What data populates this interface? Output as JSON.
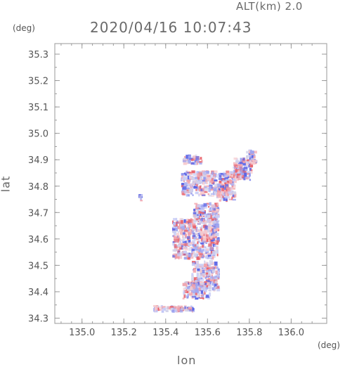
{
  "header": {
    "altitude": "ALT(km) 2.0",
    "timestamp": "2020/04/16 10:07:43"
  },
  "chart_data": {
    "type": "scatter",
    "title": "2020/04/16 10:07:43",
    "subtitle": "ALT(km) 2.0",
    "xlabel": "lon",
    "ylabel": "lat",
    "xunit": "(deg)",
    "yunit": "(deg)",
    "xlim": [
      134.87,
      136.17
    ],
    "ylim": [
      34.28,
      35.34
    ],
    "xticks": [
      135.0,
      135.2,
      135.4,
      135.6,
      135.8,
      136.0
    ],
    "xtick_labels": [
      "135.0",
      "135.2",
      "135.4",
      "135.6",
      "135.8",
      "136.0"
    ],
    "yticks": [
      34.3,
      34.4,
      34.5,
      34.6,
      34.7,
      34.8,
      34.9,
      35.0,
      35.1,
      35.2,
      35.3
    ],
    "ytick_labels": [
      "34.3",
      "34.4",
      "34.5",
      "34.6",
      "34.7",
      "34.8",
      "34.9",
      "35.0",
      "35.1",
      "35.2",
      "35.3"
    ],
    "grid": false,
    "colors": {
      "positive": "#e8646e",
      "negative": "#5a64e6",
      "neutral": "#d2d2ea"
    },
    "regions": [
      {
        "lon": [
          135.48,
          135.58
        ],
        "lat": [
          34.88,
          34.92
        ]
      },
      {
        "lon": [
          135.47,
          135.65
        ],
        "lat": [
          34.76,
          34.86
        ]
      },
      {
        "lon": [
          135.64,
          135.74
        ],
        "lat": [
          34.74,
          34.86
        ]
      },
      {
        "lon": [
          135.72,
          135.82
        ],
        "lat": [
          34.82,
          34.91
        ]
      },
      {
        "lon": [
          135.78,
          135.84
        ],
        "lat": [
          34.88,
          34.94
        ]
      },
      {
        "lon": [
          135.53,
          135.66
        ],
        "lat": [
          34.66,
          34.74
        ]
      },
      {
        "lon": [
          135.43,
          135.66
        ],
        "lat": [
          34.52,
          34.68
        ]
      },
      {
        "lon": [
          135.52,
          135.66
        ],
        "lat": [
          34.4,
          34.52
        ]
      },
      {
        "lon": [
          135.48,
          135.62
        ],
        "lat": [
          34.37,
          34.44
        ]
      },
      {
        "lon": [
          135.34,
          135.54
        ],
        "lat": [
          34.32,
          34.35
        ]
      },
      {
        "lon": [
          135.27,
          135.29
        ],
        "lat": [
          34.74,
          34.77
        ]
      }
    ]
  }
}
